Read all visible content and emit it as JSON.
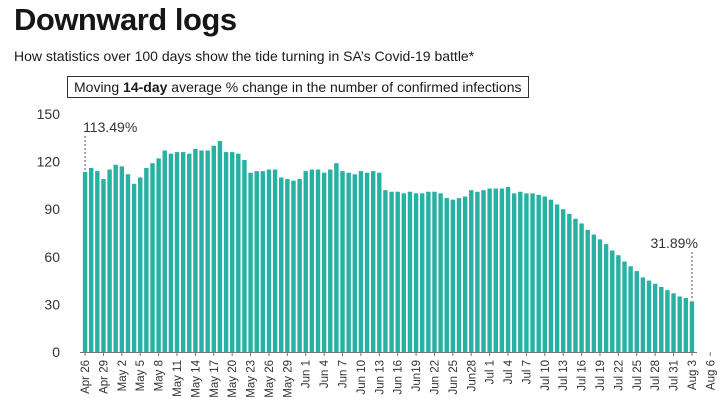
{
  "header": {
    "title": "Downward logs",
    "subtitle": "How statistics over 100 days show the tide turning in SA’s Covid-19 battle*",
    "box_label_pre": "Moving ",
    "box_label_bold": "14-day",
    "box_label_post": " average % change in the number of confirmed infections"
  },
  "chart_data": {
    "type": "bar",
    "title": "Downward logs",
    "subtitle": "How statistics over 100 days show the tide turning in SA’s Covid-19 battle*",
    "ylabel": "Moving 14-day average % change in the number of confirmed infections",
    "ylim": [
      0,
      150
    ],
    "yticks": [
      0,
      30,
      60,
      90,
      120,
      150
    ],
    "grid": false,
    "color": "#28b0a3",
    "x_tick_labels": [
      "Apr 26",
      "Apr 29",
      "May 2",
      "May 5",
      "May 8",
      "May 11",
      "May 14",
      "May 17",
      "May 20",
      "May 23",
      "May 26",
      "May 29",
      "Jun 1",
      "Jun 4",
      "Jun 7",
      "Jun 10",
      "Jun 13",
      "Jun 16",
      "Jun19",
      "Jun 22",
      "Jun 25",
      "Jun28",
      "Jul 1",
      "Jul 4",
      "Jul 7",
      "Jul 10",
      "Jul 13",
      "Jul 16",
      "Jul 19",
      "Jul 22",
      "Jul 25",
      "Jul 28",
      "Jul 31",
      "Aug 3",
      "Aug 6"
    ],
    "values": [
      113.49,
      116,
      114,
      109,
      115,
      118,
      117,
      112,
      106,
      110,
      116,
      119,
      122,
      127,
      125,
      126,
      126,
      125,
      128,
      127,
      127,
      130,
      133,
      126,
      126,
      125,
      121,
      113,
      114,
      114,
      115,
      115,
      110,
      109,
      108,
      109,
      114,
      115,
      115,
      113,
      115,
      119,
      114,
      113,
      112,
      114,
      113,
      114,
      113,
      102,
      101,
      101,
      100,
      101,
      100,
      100,
      101,
      101,
      100,
      97,
      96,
      97,
      98,
      102,
      101,
      102,
      103,
      103,
      103,
      104,
      100,
      101,
      100,
      100,
      99,
      98,
      96,
      93,
      90,
      87,
      84,
      81,
      77,
      74,
      71,
      68,
      64,
      61,
      57,
      54,
      51,
      47,
      45,
      43,
      41,
      39,
      37,
      35,
      34,
      31.89
    ],
    "annotations": [
      {
        "label": "113.49%",
        "index": 0
      },
      {
        "label": "31.89%",
        "index": 99
      }
    ]
  }
}
